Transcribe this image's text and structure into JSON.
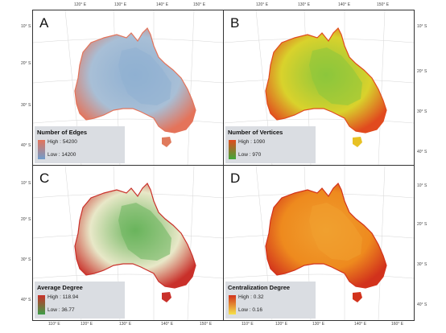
{
  "panels": [
    {
      "letter": "A",
      "legend_title": "Number of Edges",
      "high": "High : 54200",
      "low": "Low : 14200",
      "colors": {
        "base": "#a8bfd6",
        "inner": "#8fb0d2",
        "coast": "#e4735a",
        "tas": "#e07a5c",
        "ramp_high": "#e4735a",
        "ramp_low": "#6f9ccc"
      }
    },
    {
      "letter": "B",
      "legend_title": "Number of Vertices",
      "high": "High : 1090",
      "low": "Low : 970",
      "colors": {
        "base": "#d9d22c",
        "inner": "#8cc63c",
        "coast": "#e14a1e",
        "tas": "#e8c124",
        "ramp_high": "#e14a1e",
        "ramp_low": "#3fa83a"
      }
    },
    {
      "letter": "C",
      "legend_title": "Average Degree",
      "high": "High : 118.94",
      "low": "Low : 36.77",
      "colors": {
        "base": "#e8e8c8",
        "inner": "#6ab45c",
        "coast": "#c9302a",
        "tas": "#c9302a",
        "ramp_high": "#c9302a",
        "ramp_low": "#3e9e48"
      }
    },
    {
      "letter": "D",
      "legend_title": "Centralization Degree",
      "high": "High : 0.32",
      "low": "Low : 0.16",
      "colors": {
        "base": "#ee8a1e",
        "inner": "#f0a030",
        "coast": "#d2321c",
        "tas": "#d2321c",
        "ramp_high": "#d2321c",
        "ramp_low": "#f5e24a"
      }
    }
  ],
  "ticks": {
    "top_lon": [
      "120° E",
      "130° E",
      "140° E",
      "150° E"
    ],
    "bottom_lon": [
      "110° E",
      "120° E",
      "130° E",
      "140° E",
      "150° E",
      "160° E"
    ],
    "lat": [
      "10° S",
      "20° S",
      "30° S",
      "40° S"
    ]
  }
}
